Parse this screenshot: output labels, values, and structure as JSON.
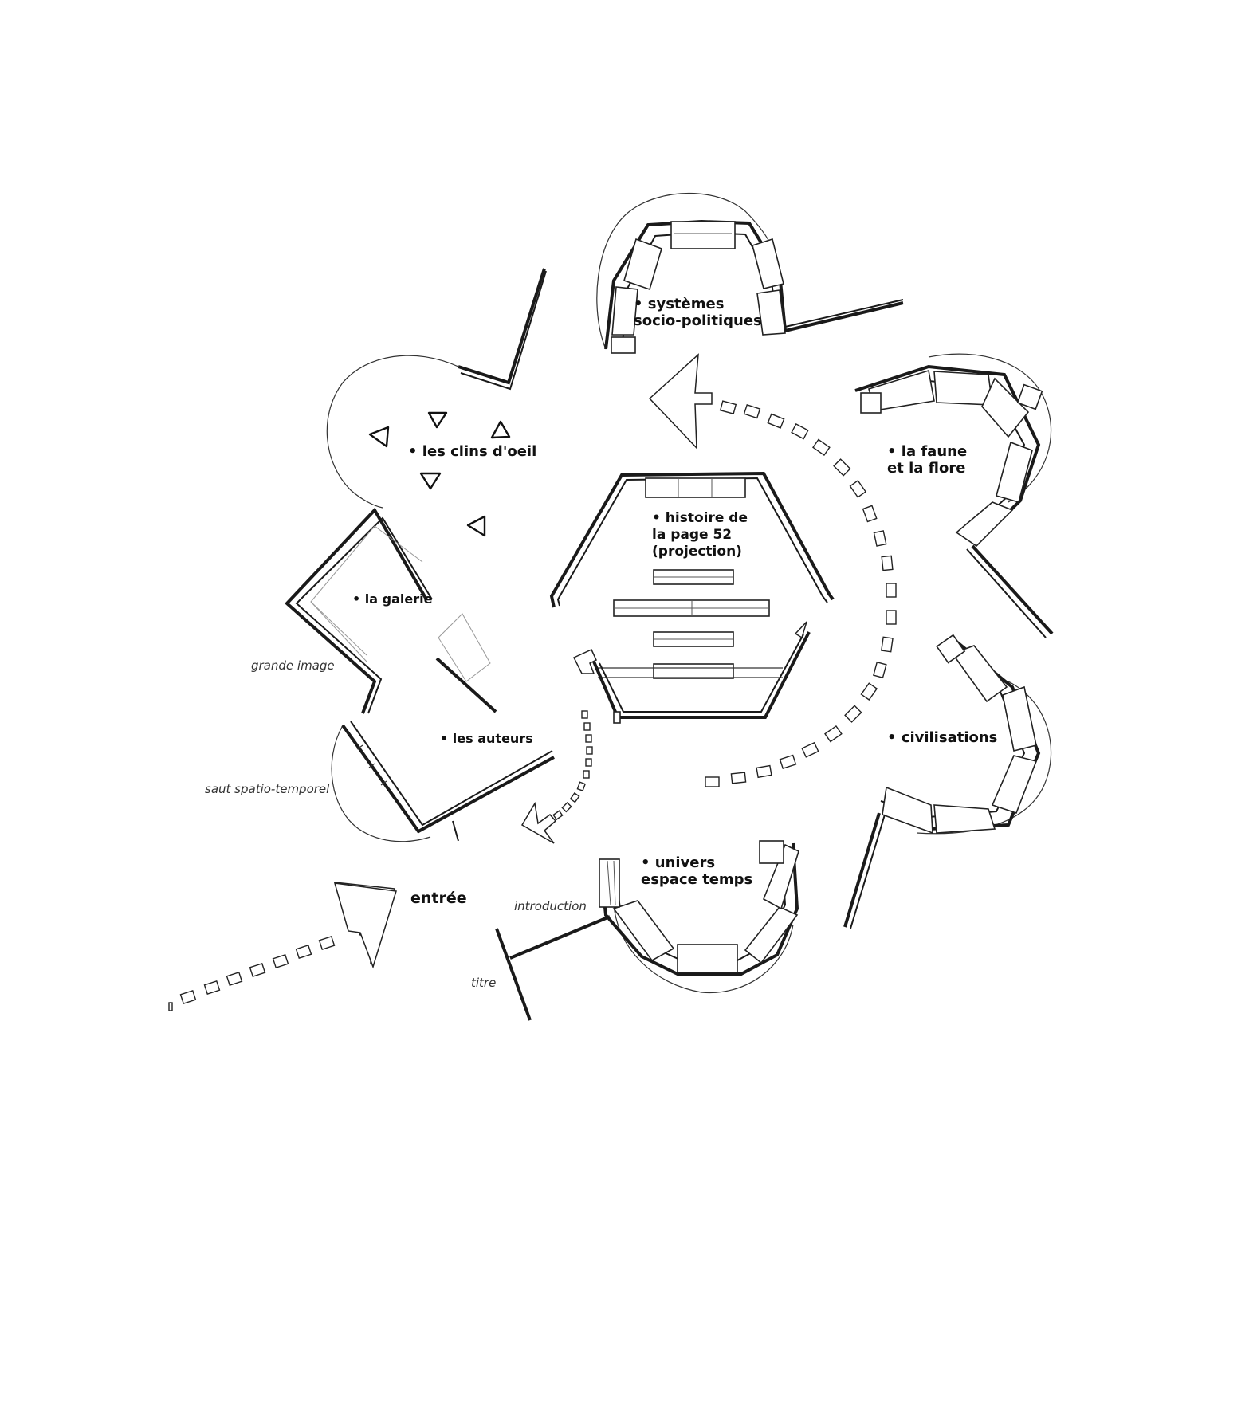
{
  "zones": {
    "systemes": [
      "• systèmes",
      "socio-politiques"
    ],
    "clins": "• les clins d'oeil",
    "faune": [
      "• la faune",
      "et la flore"
    ],
    "histoire": [
      "• histoire de",
      "la page 52",
      "(projection)"
    ],
    "galerie": "• la galerie",
    "civilisations": "• civilisations",
    "auteurs": "• les auteurs",
    "univers": [
      "• univers",
      "espace temps"
    ],
    "entree": "entrée"
  },
  "notes": {
    "grande_image": "grande image",
    "saut": "saut spatio-temporel",
    "introduction": "introduction",
    "titre": "titre"
  }
}
